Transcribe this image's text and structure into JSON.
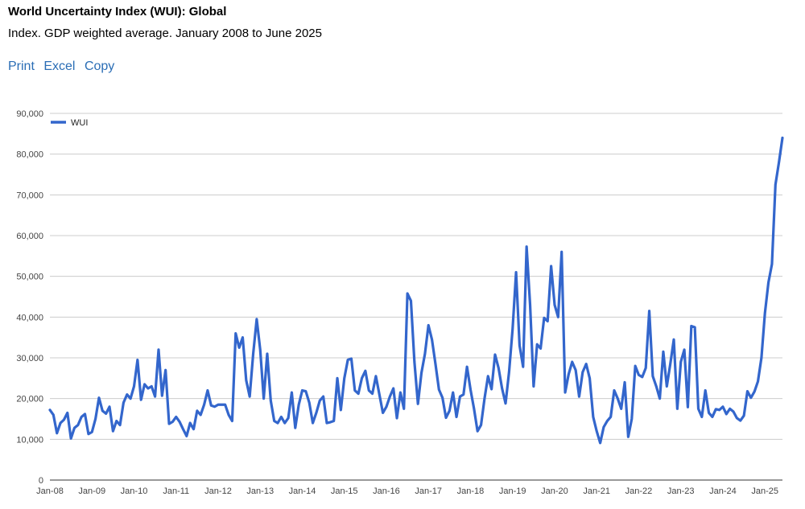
{
  "header": {
    "title": "World Uncertainty Index (WUI): Global",
    "subtitle": "Index. GDP weighted average. January 2008 to June 2025"
  },
  "actions": {
    "print": "Print",
    "excel": "Excel",
    "copy": "Copy"
  },
  "colors": {
    "series": "#3366cc",
    "grid": "#cccccc",
    "link": "#2a6db5"
  },
  "chart_data": {
    "type": "line",
    "title": "",
    "xlabel": "",
    "ylabel": "",
    "frequency": "monthly",
    "start": "2008-01",
    "end": "2025-06",
    "ylim": [
      0,
      90000
    ],
    "yticks": [
      "0",
      "10,000",
      "20,000",
      "30,000",
      "40,000",
      "50,000",
      "60,000",
      "70,000",
      "80,000",
      "90,000"
    ],
    "xticks": [
      "Jan-08",
      "Jan-09",
      "Jan-10",
      "Jan-11",
      "Jan-12",
      "Jan-13",
      "Jan-14",
      "Jan-15",
      "Jan-16",
      "Jan-17",
      "Jan-18",
      "Jan-19",
      "Jan-20",
      "Jan-21",
      "Jan-22",
      "Jan-23",
      "Jan-24",
      "Jan-25"
    ],
    "grid": true,
    "legend": "top-left",
    "series": [
      {
        "name": "WUI",
        "values": [
          17200,
          16000,
          11500,
          14000,
          14800,
          16500,
          10200,
          12800,
          13500,
          15500,
          16200,
          11300,
          11800,
          15000,
          20200,
          17000,
          16300,
          18000,
          12000,
          14500,
          13500,
          19000,
          21000,
          20000,
          23000,
          29500,
          19700,
          23500,
          22500,
          23000,
          20500,
          32000,
          20700,
          27000,
          13800,
          14300,
          15500,
          14300,
          12500,
          10800,
          14000,
          12500,
          17000,
          16000,
          18500,
          22000,
          18300,
          18000,
          18500,
          18500,
          18500,
          16000,
          14500,
          36000,
          32500,
          35000,
          24500,
          20500,
          31000,
          39500,
          32000,
          20000,
          31000,
          19500,
          14500,
          14000,
          15500,
          14000,
          15200,
          21500,
          12800,
          18500,
          22000,
          21800,
          19000,
          14000,
          16500,
          19500,
          20500,
          14000,
          14200,
          14500,
          25000,
          17200,
          25000,
          29500,
          29800,
          22000,
          21200,
          25000,
          26800,
          22000,
          21200,
          25500,
          21000,
          16500,
          18000,
          20500,
          22500,
          15200,
          21500,
          17500,
          45800,
          44000,
          29000,
          18700,
          26300,
          31000,
          38000,
          34500,
          28500,
          22200,
          20200,
          15300,
          17000,
          21500,
          15500,
          20500,
          21000,
          27800,
          22200,
          17500,
          12000,
          13500,
          20000,
          25500,
          22300,
          30800,
          27500,
          22500,
          18800,
          26500,
          37000,
          51000,
          33000,
          27800,
          57300,
          43000,
          23000,
          33300,
          32300,
          39800,
          39000,
          52500,
          43000,
          40000,
          56000,
          21500,
          26000,
          29000,
          27000,
          20500,
          26500,
          28500,
          25000,
          15500,
          12000,
          9100,
          13000,
          14500,
          15500,
          22000,
          20000,
          17500,
          24000,
          10600,
          15000,
          28000,
          25800,
          25300,
          27500,
          41500,
          25500,
          23000,
          20000,
          31500,
          23000,
          28500,
          34500,
          17500,
          29000,
          32000,
          17900,
          37800,
          37500,
          17500,
          15500,
          22000,
          16500,
          15500,
          17400,
          17200,
          18000,
          16200,
          17500,
          16800,
          15200,
          14600,
          15800,
          21800,
          20200,
          21700,
          24200,
          30000,
          41000,
          48500,
          53000,
          72500,
          78000,
          84000
        ]
      }
    ]
  }
}
